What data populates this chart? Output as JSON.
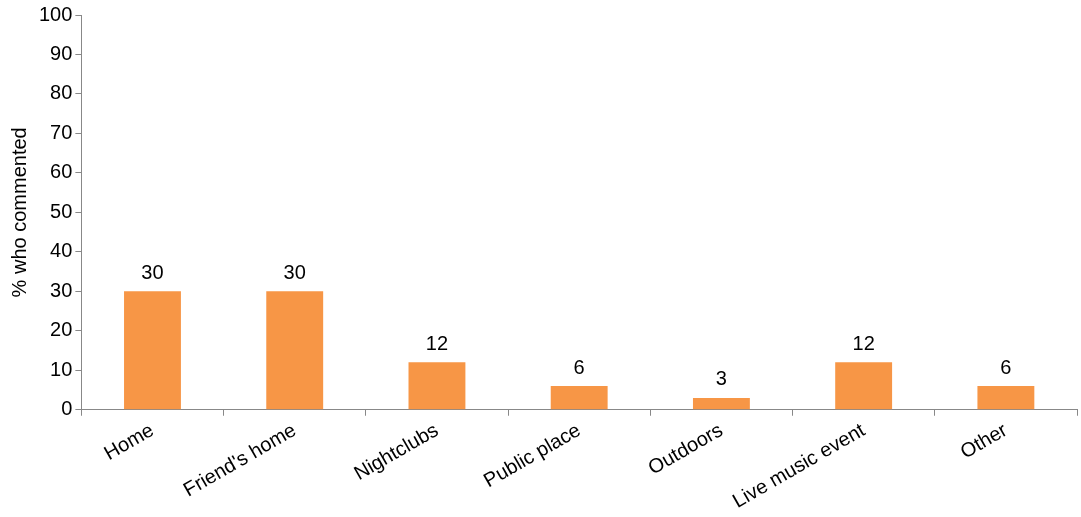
{
  "chart_data": {
    "type": "bar",
    "ylabel": "% who commented",
    "categories": [
      "Home",
      "Friend's home",
      "Nightclubs",
      "Public place",
      "Outdoors",
      "Live music event",
      "Other"
    ],
    "values": [
      30,
      30,
      12,
      6,
      3,
      12,
      6
    ],
    "color": "#f79646",
    "ylim": [
      0,
      100
    ],
    "yticks": [
      0,
      10,
      20,
      30,
      40,
      50,
      60,
      70,
      80,
      90,
      100
    ],
    "grid": false,
    "legend": false,
    "data_labels": true
  }
}
